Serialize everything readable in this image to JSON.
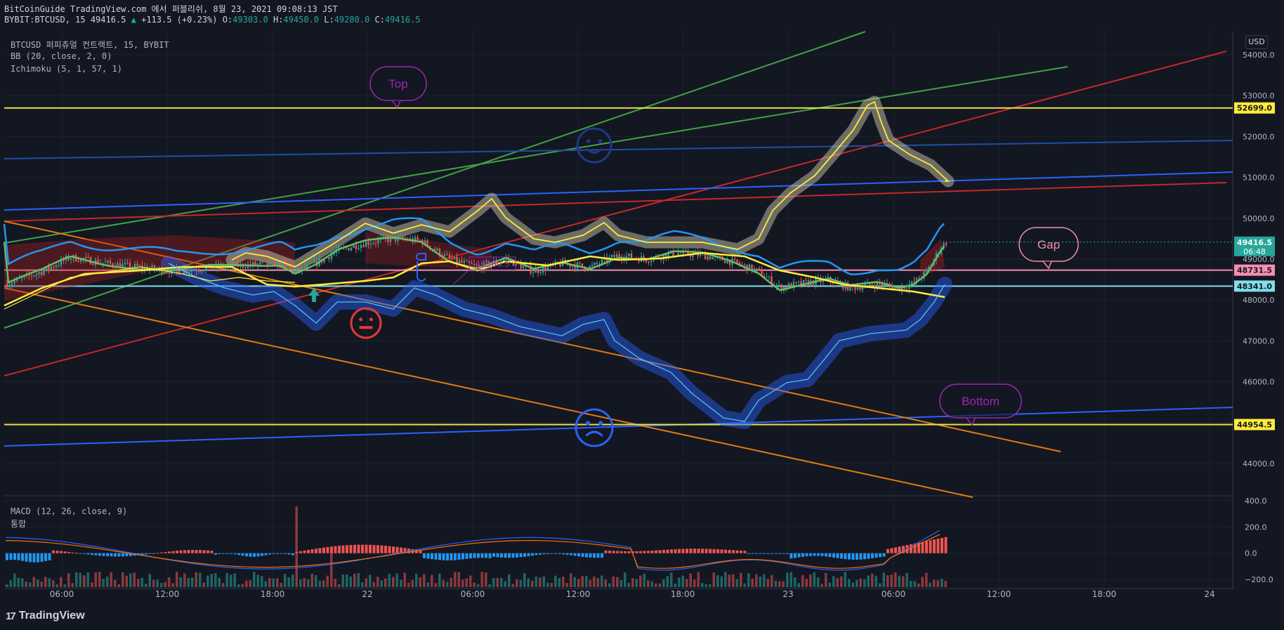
{
  "header": {
    "line1": "BitCoinGuide TradingView.com 에서 퍼블리쉬, 8월 23, 2021 09:08:13 JST",
    "symbol": "BYBIT:BTCUSD, 15 49416.5",
    "change": "+113.5 (+0.23%)",
    "ohlc": {
      "o_label": "O:",
      "o": "49303.0",
      "h_label": "H:",
      "h": "49450.0",
      "l_label": "L:",
      "l": "49280.0",
      "c_label": "C:",
      "c": "49416.5"
    }
  },
  "legend": {
    "main": "BTCUSD 퍼피츄얼 컨트랙트, 15, BYBIT",
    "bb": "BB (20, close, 2, 0)",
    "ichimoku": "Ichimoku (5, 1, 57, 1)",
    "macd": "MACD (12, 26, close, 9)",
    "macd_sub": "통합"
  },
  "currency": "USD",
  "branding": "TradingView",
  "colors": {
    "background": "#131722",
    "grid": "#1e222d",
    "up": "#26a69a",
    "down": "#ef5350",
    "yellow_line": "#e8e14b",
    "pink_line": "#f48fb1",
    "cyan_line": "#80deea",
    "bb_basis": "#66bb6a",
    "bb_band": "#2196f3",
    "ichimoku": "#ffeb3b",
    "ichimoku_low": "#4fc3f7"
  },
  "chart_data": {
    "type": "candlestick",
    "symbol": "BYBIT:BTCUSD",
    "interval": "15",
    "y_axis": {
      "min": 43200,
      "max": 54500,
      "ticks": [
        54000,
        53000,
        52000,
        51000,
        50000,
        49000,
        48000,
        47000,
        46000,
        45000,
        44000
      ]
    },
    "x_axis": {
      "ticks": [
        "06:00",
        "12:00",
        "18:00",
        "22",
        "06:00",
        "12:00",
        "18:00",
        "23",
        "06:00",
        "12:00",
        "18:00",
        "24"
      ]
    },
    "price_labels": [
      {
        "value": 52699.0,
        "text": "52699.0",
        "color": "#ffeb3b",
        "text_color": "#131722"
      },
      {
        "value": 49416.5,
        "text": "49416.5",
        "sub": "06:48",
        "color": "#26a69a",
        "text_color": "#ffffff"
      },
      {
        "value": 48731.5,
        "text": "48731.5",
        "color": "#f48fb1",
        "text_color": "#131722"
      },
      {
        "value": 48341.0,
        "text": "48341.0",
        "color": "#80deea",
        "text_color": "#131722"
      },
      {
        "value": 44954.5,
        "text": "44954.5",
        "color": "#ffeb3b",
        "text_color": "#131722"
      }
    ],
    "horizontal_levels": [
      52699.0,
      48731.5,
      48341.0,
      44954.5
    ],
    "annotations": [
      {
        "text": "Top",
        "color": "#9c27b0"
      },
      {
        "text": "Gap",
        "color": "#f48fb1"
      },
      {
        "text": "Bottom",
        "color": "#9c27b0"
      },
      {
        "text": "48380.5",
        "color": "#9c27b0"
      }
    ],
    "current_price": 49416.5,
    "macd": {
      "title": "MACD (12, 26, close, 9)",
      "y_ticks": [
        400.0,
        200.0,
        0.0,
        -200.0
      ],
      "y_tick_labels": [
        "400.0",
        "200.0",
        "0.0",
        "−200.0"
      ],
      "ylim": [
        -230,
        420
      ]
    }
  }
}
